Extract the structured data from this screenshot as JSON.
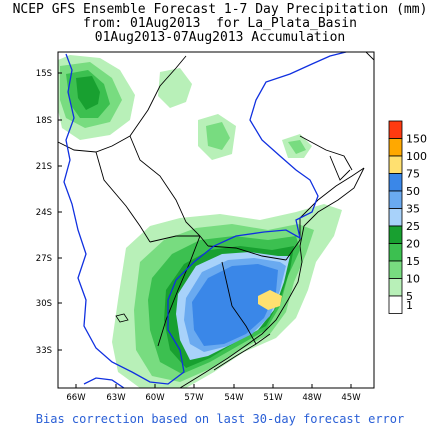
{
  "title": {
    "line1": "NCEP GFS Ensemble Forecast 1-7 Day Precipitation (mm)",
    "line2": "from: 01Aug2013  for La_Plata_Basin",
    "line3": "01Aug2013-07Aug2013 Accumulation"
  },
  "footer": "Bias correction based on last 30-day forecast error",
  "axes": {
    "lat_ticks": [
      "15S",
      "18S",
      "21S",
      "24S",
      "27S",
      "30S",
      "33S"
    ],
    "lon_ticks": [
      "66W",
      "63W",
      "60W",
      "57W",
      "54W",
      "51W",
      "48W",
      "45W"
    ]
  },
  "legend": {
    "levels": [
      "150",
      "100",
      "75",
      "50",
      "35",
      "25",
      "20",
      "15",
      "10",
      "5",
      "1"
    ],
    "colors": [
      "#ff3a10",
      "#ffa800",
      "#ffe070",
      "#3a87e8",
      "#6aaaf0",
      "#a8d2fa",
      "#18a030",
      "#3cc050",
      "#78dc80",
      "#b8f0b8",
      "#ffffff"
    ]
  },
  "colors": {
    "basin_outline": "#1030e0",
    "border": "#000000",
    "footer_text": "#2a5fd6"
  }
}
